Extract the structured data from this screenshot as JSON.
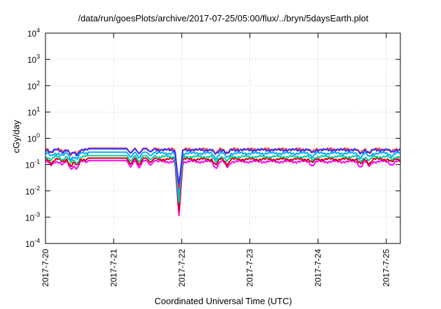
{
  "chart_data": {
    "type": "line",
    "title": "/data/run/goesPlots/archive/2017-07-25/05:00/flux/../bryn/5daysEarth.plot",
    "xlabel": "Coordinated Universal Time (UTC)",
    "ylabel": "cGy/day",
    "yscale": "log",
    "ylim": [
      0.0001,
      10000
    ],
    "xlim": [
      "2017-07-20 00:00",
      "2017-07-25 05:00"
    ],
    "grid": true,
    "x_ticks": [
      "2017-7-20",
      "2017-7-21",
      "2017-7-22",
      "2017-7-23",
      "2017-7-24",
      "2017-7-25"
    ],
    "y_ticks": [
      {
        "value": 0.0001,
        "base": "10",
        "exp": "-4"
      },
      {
        "value": 0.001,
        "base": "10",
        "exp": "-3"
      },
      {
        "value": 0.01,
        "base": "10",
        "exp": "-2"
      },
      {
        "value": 0.1,
        "base": "10",
        "exp": "-1"
      },
      {
        "value": 1,
        "base": "10",
        "exp": "0"
      },
      {
        "value": 10,
        "base": "10",
        "exp": "1"
      },
      {
        "value": 100,
        "base": "10",
        "exp": "2"
      },
      {
        "value": 1000,
        "base": "10",
        "exp": "3"
      },
      {
        "value": 10000,
        "base": "10",
        "exp": "4"
      }
    ],
    "series_base": [
      {
        "color": "#ff00ff",
        "level": 0.13
      },
      {
        "color": "#cc0000",
        "level": 0.16
      },
      {
        "color": "#00cc99",
        "level": 0.2
      },
      {
        "color": "#00aaff",
        "level": 0.27
      },
      {
        "color": "#ff3333",
        "level": 0.38
      },
      {
        "color": "#3333ff",
        "level": 0.36
      }
    ],
    "flat_segment": {
      "start": "2017-07-20 15:00",
      "end": "2017-07-21 15:00",
      "factor": 1.1
    },
    "events": [
      {
        "time": "2017-07-20 02:00",
        "dip": 0.7
      },
      {
        "time": "2017-07-20 06:00",
        "dip": 0.75
      },
      {
        "time": "2017-07-20 09:00",
        "dip": 0.5
      },
      {
        "time": "2017-07-20 11:00",
        "dip": 0.5
      },
      {
        "time": "2017-07-21 06:00",
        "dip": 0.55
      },
      {
        "time": "2017-07-21 09:00",
        "dip": 0.5
      },
      {
        "time": "2017-07-21 13:00",
        "dip": 0.65
      },
      {
        "time": "2017-07-21 23:00",
        "dip": 0.008
      },
      {
        "time": "2017-07-22 12:00",
        "dip": 0.55
      },
      {
        "time": "2017-07-22 16:00",
        "dip": 0.6
      },
      {
        "time": "2017-07-23 22:00",
        "dip": 0.7
      },
      {
        "time": "2017-07-24 15:00",
        "dip": 0.6
      },
      {
        "time": "2017-07-24 18:00",
        "dip": 0.65
      },
      {
        "time": "2017-07-25 02:00",
        "dip": 0.75
      }
    ]
  }
}
